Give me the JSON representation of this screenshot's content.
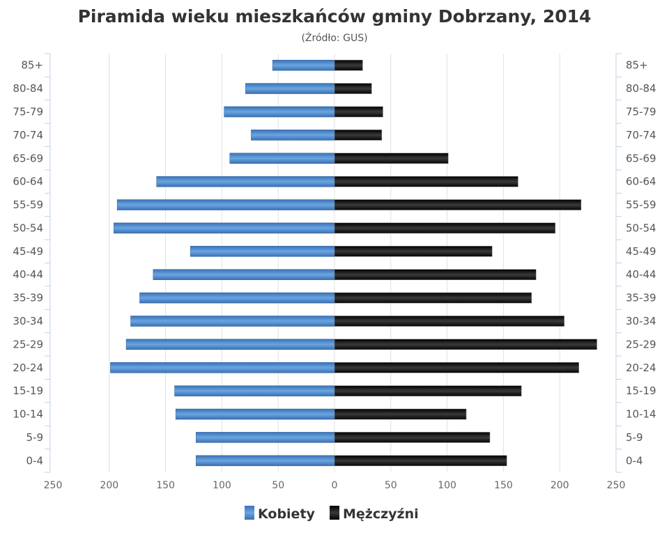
{
  "chart_data": {
    "type": "bar",
    "orientation": "horizontal-population-pyramid",
    "title": "Piramida wieku mieszkańców gminy Dobrzany, 2014",
    "subtitle": "(Źródło: GUS)",
    "categories": [
      "85+",
      "80-84",
      "75-79",
      "70-74",
      "65-69",
      "60-64",
      "55-59",
      "50-54",
      "45-49",
      "40-44",
      "35-39",
      "30-34",
      "25-29",
      "20-24",
      "15-19",
      "10-14",
      "5-9",
      "0-4"
    ],
    "series": [
      {
        "name": "Kobiety",
        "side": "left",
        "color": "#4a86c8",
        "values": [
          55,
          79,
          98,
          74,
          93,
          158,
          193,
          196,
          128,
          161,
          173,
          181,
          185,
          199,
          142,
          141,
          123,
          123
        ]
      },
      {
        "name": "Mężczyźni",
        "side": "right",
        "color": "#1a1a1a",
        "values": [
          25,
          33,
          43,
          42,
          101,
          163,
          219,
          196,
          140,
          179,
          175,
          204,
          233,
          217,
          166,
          117,
          138,
          153
        ]
      }
    ],
    "xlim": [
      -250,
      250
    ],
    "xticks": [
      250,
      200,
      150,
      100,
      50,
      0,
      50,
      100,
      150,
      200,
      250
    ],
    "grid": true,
    "legend_position": "bottom-center"
  }
}
